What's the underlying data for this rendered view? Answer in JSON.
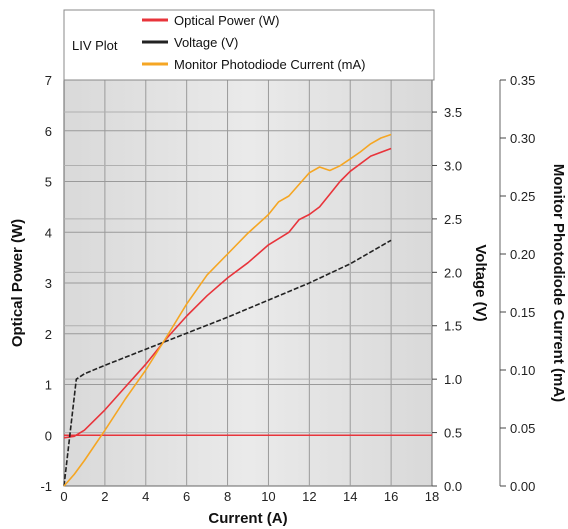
{
  "chart_data": {
    "type": "line",
    "title": "LIV Plot",
    "xlabel": "Current (A)",
    "ylabel_left": "Optical Power (W)",
    "ylabel_right1": "Voltage (V)",
    "ylabel_right2": "Monitor Photodiode Current (mA)",
    "xlim": [
      0,
      18
    ],
    "ylim_left": [
      -1,
      7
    ],
    "ylim_right1": [
      0.0,
      3.8
    ],
    "ylim_right2": [
      0.0,
      0.35
    ],
    "x_ticks": [
      "0",
      "2",
      "4",
      "6",
      "8",
      "10",
      "12",
      "14",
      "16",
      "18"
    ],
    "y_left_ticks": [
      "-1",
      "0",
      "1",
      "2",
      "3",
      "4",
      "5",
      "6",
      "7"
    ],
    "y_right1_ticks": [
      "0.0",
      "0.5",
      "1.0",
      "1.5",
      "2.0",
      "2.5",
      "3.0",
      "3.5"
    ],
    "y_right2_ticks": [
      "0.00",
      "0.05",
      "0.10",
      "0.15",
      "0.20",
      "0.25",
      "0.30",
      "0.35"
    ],
    "grid": true,
    "legend_position": "top-center",
    "series": [
      {
        "name": "Optical Power (W)",
        "axis": "left",
        "color": "#e8343b",
        "x": [
          0,
          0.5,
          1.0,
          2.0,
          3.0,
          4.0,
          5.0,
          6.0,
          7.0,
          8.0,
          9.0,
          10.0,
          11.0,
          11.5,
          12.0,
          12.5,
          13.0,
          13.5,
          14.0,
          15.0,
          16.0
        ],
        "y": [
          -0.05,
          -0.02,
          0.1,
          0.5,
          0.95,
          1.4,
          1.9,
          2.35,
          2.75,
          3.1,
          3.4,
          3.75,
          4.0,
          4.25,
          4.35,
          4.5,
          4.75,
          5.0,
          5.2,
          5.5,
          5.65
        ]
      },
      {
        "name": "Voltage (V)",
        "axis": "right1",
        "color": "#222222",
        "x": [
          0,
          0.6,
          1,
          2,
          4,
          6,
          8,
          10,
          12,
          14,
          16
        ],
        "y": [
          0.0,
          1.0,
          1.05,
          1.13,
          1.28,
          1.43,
          1.58,
          1.74,
          1.9,
          2.08,
          2.3
        ]
      },
      {
        "name": "Monitor Photodiode Current (mA)",
        "axis": "right2",
        "color": "#f5a623",
        "x": [
          0,
          0.5,
          1.0,
          2.0,
          3.0,
          4.0,
          5.0,
          6.0,
          7.0,
          8.0,
          9.0,
          10.0,
          10.5,
          11.0,
          11.5,
          12.0,
          12.5,
          13.0,
          13.5,
          14.0,
          14.5,
          15.0,
          15.5,
          16.0
        ],
        "y": [
          0.0,
          0.01,
          0.022,
          0.048,
          0.075,
          0.1,
          0.128,
          0.157,
          0.182,
          0.2,
          0.218,
          0.234,
          0.245,
          0.25,
          0.26,
          0.27,
          0.275,
          0.272,
          0.276,
          0.282,
          0.288,
          0.295,
          0.3,
          0.303
        ]
      }
    ]
  },
  "zero_line_color": "#e8343b"
}
